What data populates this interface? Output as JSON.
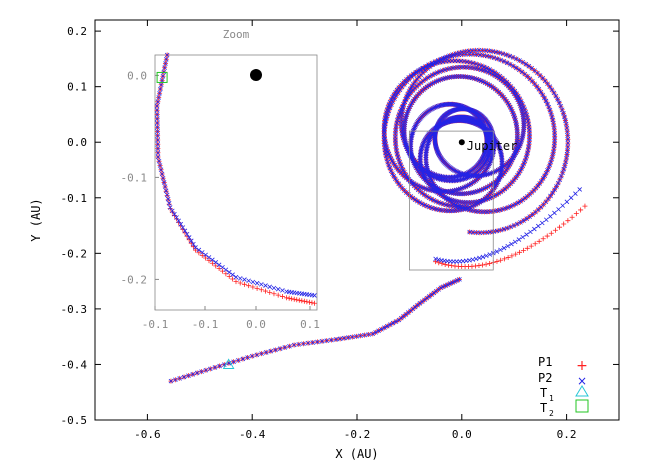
{
  "chart_data": {
    "type": "scatter",
    "title": "",
    "xlabel": "X (AU)",
    "ylabel": "Y (AU)",
    "xlim": [
      -0.7,
      0.3
    ],
    "ylim": [
      -0.5,
      0.22
    ],
    "x_ticks": [
      "-0.6",
      "-0.4",
      "-0.2",
      "0.0",
      "0.2"
    ],
    "y_ticks": [
      "0.2",
      "0.1",
      "0.0",
      "-0.1",
      "-0.2",
      "-0.3",
      "-0.4",
      "-0.5"
    ],
    "grid": false,
    "legend_position": "bottom-right",
    "colors": {
      "p1": "#ff2020",
      "p2": "#2424e6",
      "t1": "#27c6d6",
      "t2": "#22c422",
      "frame": "#000000",
      "inset_frame": "#888888"
    },
    "series": [
      {
        "name": "P1",
        "marker": "+",
        "color": "#ff2020"
      },
      {
        "name": "P2",
        "marker": "x",
        "color": "#2424e6"
      },
      {
        "name": "T1",
        "marker": "triangle",
        "color": "#27c6d6",
        "points": [
          [
            -0.445,
            -0.4
          ]
        ]
      },
      {
        "name": "T2",
        "marker": "square",
        "color": "#22c422",
        "points": [
          [
            -0.093,
            -0.002
          ]
        ]
      }
    ],
    "trajectory": {
      "start": [
        -0.555,
        -0.43
      ],
      "path_points": [
        [
          -0.555,
          -0.43
        ],
        [
          -0.48,
          -0.408
        ],
        [
          -0.4,
          -0.385
        ],
        [
          -0.32,
          -0.365
        ],
        [
          -0.24,
          -0.355
        ],
        [
          -0.17,
          -0.345
        ],
        [
          -0.12,
          -0.32
        ],
        [
          -0.08,
          -0.29
        ],
        [
          -0.04,
          -0.262
        ],
        [
          0.0,
          -0.245
        ]
      ],
      "orbit_center": [
        0.0,
        0.0
      ],
      "orbit_radii_range": [
        0.05,
        0.19
      ],
      "end_p1": [
        0.235,
        -0.115
      ],
      "end_p2": [
        0.225,
        -0.085
      ]
    },
    "annotations": [
      {
        "text": "Jupiter",
        "x": 0.0,
        "y": 0.0,
        "marker": "filled-circle"
      }
    ],
    "inset": {
      "title": "Zoom",
      "xlim": [
        -0.1,
        0.06
      ],
      "ylim": [
        -0.23,
        0.02
      ],
      "x_ticks": [
        "-0.1",
        "-0.1",
        "0.0",
        "0.1"
      ],
      "y_ticks": [
        "0.0",
        "-0.1",
        "-0.2"
      ],
      "curve_points": [
        [
          -0.088,
          0.02
        ],
        [
          -0.098,
          -0.03
        ],
        [
          -0.097,
          -0.08
        ],
        [
          -0.085,
          -0.13
        ],
        [
          -0.06,
          -0.17
        ],
        [
          -0.02,
          -0.2
        ],
        [
          0.03,
          -0.215
        ],
        [
          0.06,
          -0.22
        ]
      ]
    }
  }
}
